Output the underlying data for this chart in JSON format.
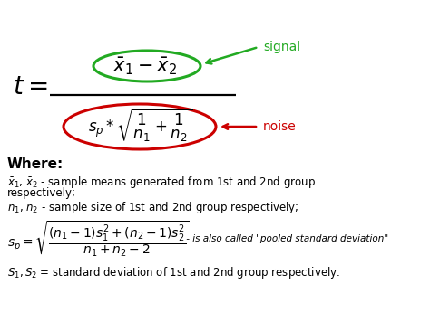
{
  "bg_color": "#ffffff",
  "signal_color": "#22aa22",
  "noise_color": "#cc0000",
  "text_color": "#000000",
  "where_label": "Where:",
  "signal_label": "signal",
  "noise_label": "noise",
  "sp_note": " - is also called \"pooled standard deviation\""
}
